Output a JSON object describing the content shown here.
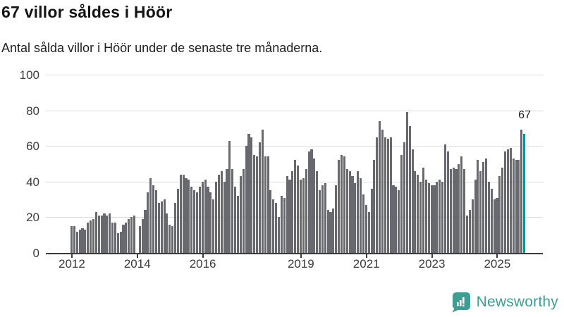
{
  "header": {
    "title": "67 villor såldes i Höör",
    "subtitle": "Antal sålda villor i Höör under de senaste tre månaderna."
  },
  "chart_data": {
    "type": "bar",
    "title": "67 villor såldes i Höör",
    "subtitle": "Antal sålda villor i Höör under de senaste tre månaderna.",
    "xlabel": "",
    "ylabel": "",
    "ylim": [
      0,
      100
    ],
    "y_ticks": [
      0,
      20,
      40,
      60,
      80,
      100
    ],
    "grid": true,
    "legend": "none",
    "x_ticks": [
      {
        "label": "2012",
        "index": 0
      },
      {
        "label": "2014",
        "index": 24
      },
      {
        "label": "2016",
        "index": 48
      },
      {
        "label": "2019",
        "index": 84
      },
      {
        "label": "2021",
        "index": 108
      },
      {
        "label": "2023",
        "index": 132
      },
      {
        "label": "2025",
        "index": 156
      }
    ],
    "values": [
      15,
      15,
      12,
      13,
      14,
      13,
      17,
      18,
      19,
      23,
      21,
      21,
      22,
      21,
      22,
      17,
      17,
      11,
      12,
      16,
      17,
      19,
      20,
      21,
      0,
      15,
      19,
      24,
      34,
      42,
      38,
      35,
      28,
      29,
      30,
      22,
      16,
      15,
      28,
      36,
      44,
      44,
      42,
      41,
      37,
      35,
      34,
      37,
      40,
      41,
      37,
      34,
      30,
      40,
      44,
      46,
      40,
      47,
      63,
      47,
      37,
      32,
      43,
      47,
      60,
      67,
      65,
      55,
      54,
      62,
      69,
      54,
      54,
      35,
      30,
      28,
      20,
      32,
      31,
      43,
      41,
      46,
      52,
      49,
      41,
      42,
      47,
      57,
      58,
      53,
      46,
      35,
      38,
      39,
      24,
      23,
      25,
      38,
      52,
      55,
      54,
      47,
      46,
      43,
      39,
      46,
      42,
      33,
      27,
      23,
      36,
      52,
      65,
      74,
      69,
      65,
      64,
      65,
      38,
      37,
      35,
      55,
      62,
      79,
      71,
      58,
      46,
      44,
      40,
      48,
      41,
      39,
      38,
      38,
      40,
      41,
      40,
      61,
      57,
      47,
      48,
      47,
      50,
      54,
      47,
      21,
      24,
      30,
      41,
      52,
      46,
      51,
      53,
      40,
      36,
      30,
      31,
      43,
      48,
      57,
      58,
      59,
      53,
      52,
      52,
      69,
      67
    ],
    "highlight_last_bar": true,
    "annotation": {
      "text": "67",
      "target": "last-bar"
    },
    "colors": {
      "bar": "#68686f",
      "highlight": "#0e9494",
      "gridline": "#dcdcdc",
      "axis": "#3a3a3f",
      "tick_label": "#3d3d3d"
    }
  },
  "footer": {
    "brand": "Newsworthy",
    "brand_color": "#3f9e94"
  }
}
